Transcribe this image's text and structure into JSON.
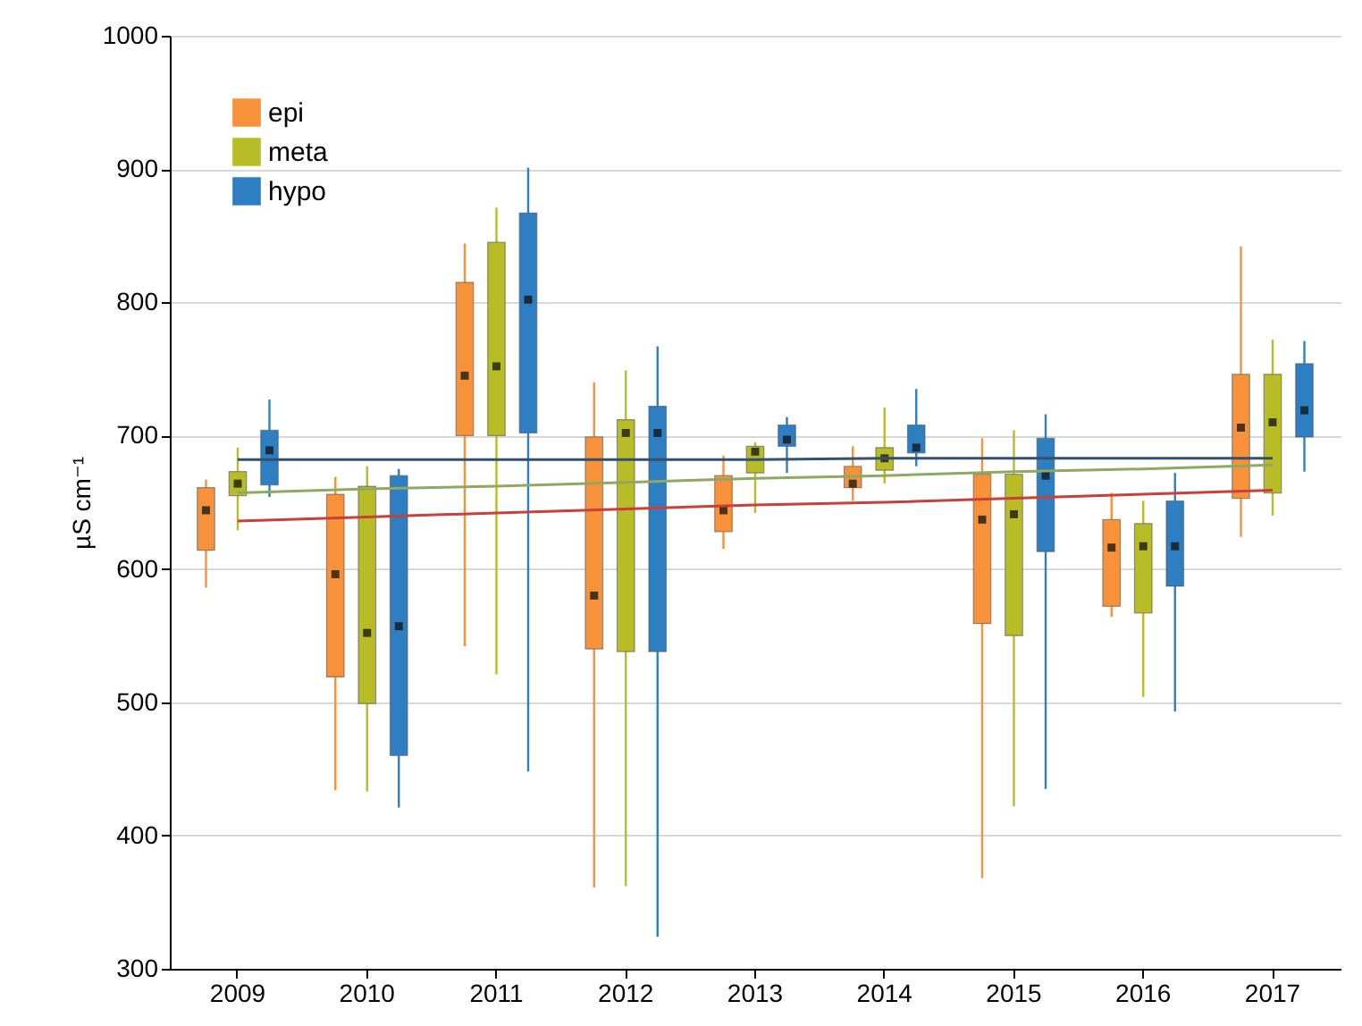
{
  "chart_data": {
    "type": "box",
    "ylabel": "µS cm⁻¹",
    "categories": [
      "2009",
      "2010",
      "2011",
      "2012",
      "2013",
      "2014",
      "2015",
      "2016",
      "2017"
    ],
    "ylim": [
      300,
      1000
    ],
    "yticks": [
      300,
      400,
      500,
      600,
      700,
      800,
      900,
      1000
    ],
    "grid": "y",
    "legend": "top left",
    "series": [
      {
        "name": "epi",
        "color": "#f7923a",
        "boxes": [
          {
            "low": 586,
            "q1": 614,
            "median": 644,
            "q3": 661,
            "high": 667
          },
          {
            "low": 434,
            "q1": 519,
            "median": 596,
            "q3": 656,
            "high": 669
          },
          {
            "low": 542,
            "q1": 700,
            "median": 745,
            "q3": 815,
            "high": 844
          },
          {
            "low": 361,
            "q1": 540,
            "median": 580,
            "q3": 699,
            "high": 740
          },
          {
            "low": 615,
            "q1": 628,
            "median": 644,
            "q3": 670,
            "high": 685
          },
          {
            "low": 651,
            "q1": 661,
            "median": 664,
            "q3": 677,
            "high": 692
          },
          {
            "low": 368,
            "q1": 559,
            "median": 637,
            "q3": 671,
            "high": 698
          },
          {
            "low": 564,
            "q1": 572,
            "median": 616,
            "q3": 637,
            "high": 657
          },
          {
            "low": 624,
            "q1": 653,
            "median": 706,
            "q3": 746,
            "high": 842
          }
        ]
      },
      {
        "name": "meta",
        "color": "#b8bc26",
        "boxes": [
          {
            "low": 629,
            "q1": 655,
            "median": 664,
            "q3": 673,
            "high": 691
          },
          {
            "low": 433,
            "q1": 499,
            "median": 552,
            "q3": 662,
            "high": 677
          },
          {
            "low": 521,
            "q1": 700,
            "median": 752,
            "q3": 845,
            "high": 871
          },
          {
            "low": 362,
            "q1": 538,
            "median": 702,
            "q3": 712,
            "high": 749
          },
          {
            "low": 642,
            "q1": 672,
            "median": 688,
            "q3": 692,
            "high": 695
          },
          {
            "low": 664,
            "q1": 674,
            "median": 683,
            "q3": 691,
            "high": 721
          },
          {
            "low": 422,
            "q1": 550,
            "median": 641,
            "q3": 671,
            "high": 704
          },
          {
            "low": 504,
            "q1": 567,
            "median": 617,
            "q3": 634,
            "high": 651
          },
          {
            "low": 640,
            "q1": 657,
            "median": 710,
            "q3": 746,
            "high": 772
          }
        ]
      },
      {
        "name": "hypo",
        "color": "#2e7fc2",
        "boxes": [
          {
            "low": 654,
            "q1": 663,
            "median": 689,
            "q3": 704,
            "high": 727
          },
          {
            "low": 421,
            "q1": 460,
            "median": 557,
            "q3": 670,
            "high": 675
          },
          {
            "low": 448,
            "q1": 702,
            "median": 802,
            "q3": 867,
            "high": 901
          },
          {
            "low": 324,
            "q1": 538,
            "median": 702,
            "q3": 722,
            "high": 767
          },
          {
            "low": 672,
            "q1": 692,
            "median": 697,
            "q3": 708,
            "high": 714
          },
          {
            "low": 677,
            "q1": 687,
            "median": 691,
            "q3": 708,
            "high": 735
          },
          {
            "low": 435,
            "q1": 613,
            "median": 670,
            "q3": 698,
            "high": 716
          },
          {
            "low": 493,
            "q1": 587,
            "median": 617,
            "q3": 651,
            "high": 672
          },
          {
            "low": 673,
            "q1": 699,
            "median": 719,
            "q3": 754,
            "high": 771
          }
        ]
      },
      {
        "type": "line",
        "color": "#c8403a",
        "values": [
          636,
          639,
          642,
          645,
          648,
          650,
          653,
          656,
          659
        ]
      },
      {
        "type": "line",
        "color": "#8fa862",
        "values": [
          657,
          660,
          662,
          665,
          668,
          670,
          673,
          675,
          678
        ]
      },
      {
        "type": "line",
        "color": "#34506e",
        "values": [
          682,
          682,
          682,
          682,
          682,
          683,
          683,
          683,
          683
        ]
      }
    ]
  }
}
